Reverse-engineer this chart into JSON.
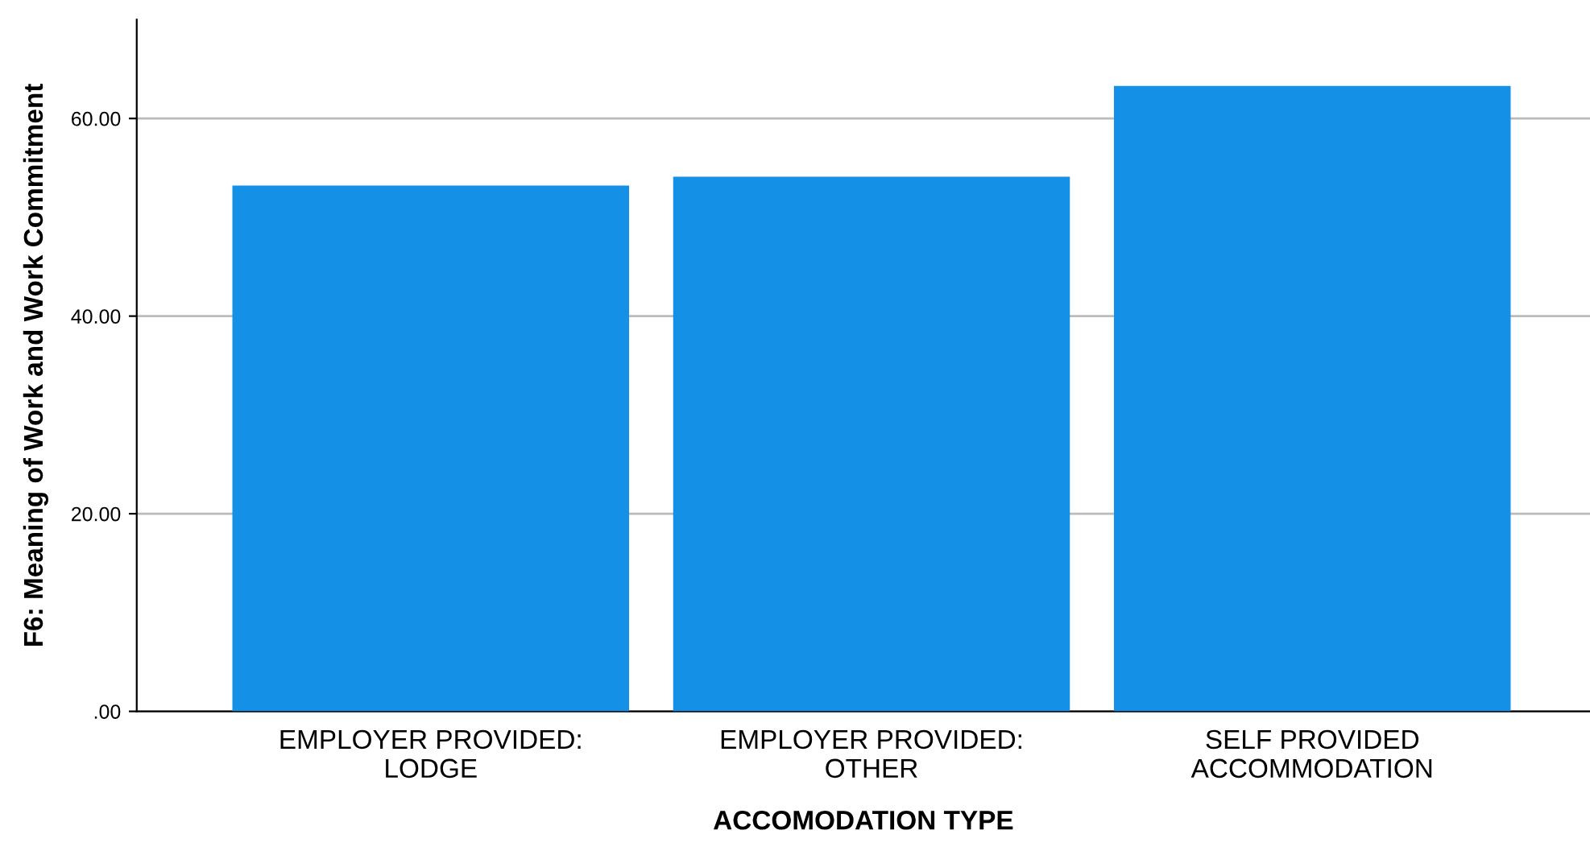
{
  "chart_data": {
    "type": "bar",
    "xlabel": "ACCOMODATION TYPE",
    "ylabel": "F6: Meaning of Work and Work Commitment",
    "categories": [
      "EMPLOYER PROVIDED:\nLODGE",
      "EMPLOYER PROVIDED:\nOTHER",
      "SELF PROVIDED\nACCOMMODATION"
    ],
    "values": [
      53.2,
      54.1,
      63.3
    ],
    "color": "#1490e6",
    "ylim": [
      0,
      70
    ],
    "yticks": [
      {
        "value": 0,
        "label": ".00"
      },
      {
        "value": 20,
        "label": "20.00"
      },
      {
        "value": 40,
        "label": "40.00"
      },
      {
        "value": 60,
        "label": "60.00"
      }
    ],
    "grid": "y",
    "legend": false
  }
}
